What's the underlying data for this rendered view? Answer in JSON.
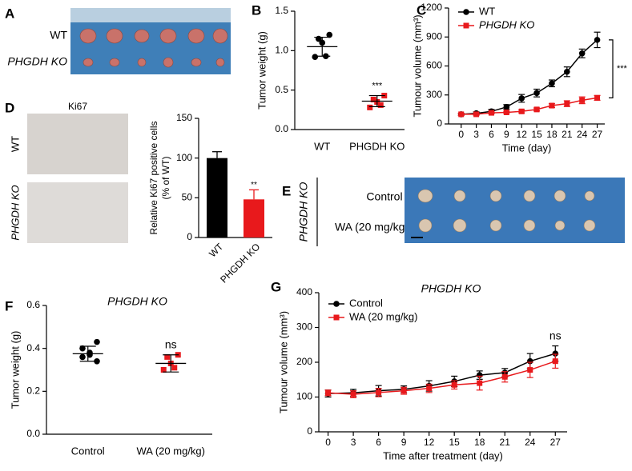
{
  "panel_labels": [
    "A",
    "B",
    "C",
    "D",
    "E",
    "F",
    "G"
  ],
  "images": {
    "A": {
      "rows": [
        "WT",
        "PHGDH KO"
      ]
    },
    "D": {
      "title": "Ki67",
      "rows": [
        "WT",
        "PHGDH KO"
      ]
    },
    "E": {
      "group": "PHGDH KO",
      "rows": [
        "Control",
        "WA (20 mg/kg)"
      ]
    }
  },
  "chart_data": [
    {
      "type": "dot",
      "ylabel": "Tumor weight (g)",
      "categories": [
        "WT",
        "PHGDH KO"
      ],
      "colors": [
        "#000000",
        "#e8191c"
      ],
      "values": [
        [
          1.2,
          1.15,
          1.1,
          0.93,
          0.92
        ],
        [
          0.43,
          0.38,
          0.35,
          0.31,
          0.28
        ]
      ],
      "means": [
        1.05,
        0.36
      ],
      "sds": [
        0.12,
        0.07
      ],
      "annotation": "***",
      "ylim": [
        0,
        1.5
      ],
      "yticks": [
        {
          "value": 0,
          "label": "0.0"
        },
        0.5,
        {
          "value": 1,
          "label": "1.0"
        },
        1.5
      ]
    },
    {
      "type": "line",
      "ylabel": "Tumour volume (mm³)",
      "xlabel": "Time (day)",
      "x": [
        0,
        3,
        6,
        9,
        12,
        15,
        18,
        21,
        24,
        27
      ],
      "series": [
        {
          "name": "WT",
          "color": "#000000",
          "marker": "circle",
          "values": [
            100,
            110,
            130,
            175,
            265,
            320,
            420,
            540,
            730,
            870
          ],
          "errors": [
            10,
            15,
            20,
            25,
            40,
            40,
            35,
            50,
            45,
            80
          ]
        },
        {
          "name": "PHGDH KO",
          "color": "#e8191c",
          "marker": "square",
          "values": [
            100,
            100,
            115,
            120,
            130,
            150,
            190,
            210,
            245,
            270
          ],
          "errors": [
            10,
            10,
            10,
            10,
            15,
            15,
            20,
            30,
            35,
            25
          ]
        }
      ],
      "annotation": "***",
      "legend": "top-left",
      "xlim": [
        -2.5,
        28.5
      ],
      "xticks": [
        0,
        3,
        6,
        9,
        12,
        15,
        18,
        21,
        24,
        27
      ],
      "ylim": [
        0,
        1200
      ],
      "yticks": [
        0,
        300,
        600,
        900,
        1200
      ]
    },
    {
      "type": "bar",
      "ylabel": [
        "Relative Ki67 positive cells",
        "(% of WT)"
      ],
      "categories": [
        "WT",
        "PHGDH KO"
      ],
      "colors": [
        "#000000",
        "#e8191c"
      ],
      "values": [
        100,
        48
      ],
      "errors": [
        8,
        12
      ],
      "annotation": "**",
      "ylim": [
        0,
        150
      ],
      "yticks": [
        0,
        50,
        100,
        150
      ]
    },
    {
      "type": "dot",
      "title": "PHGDH KO",
      "ylabel": "Tumor weight (g)",
      "categories": [
        "Control",
        "WA (20 mg/kg)"
      ],
      "colors": [
        "#000000",
        "#e8191c"
      ],
      "values": [
        [
          0.43,
          0.4,
          0.38,
          0.37,
          0.36,
          0.34
        ],
        [
          0.37,
          0.36,
          0.33,
          0.31,
          0.3
        ]
      ],
      "means": [
        0.375,
        0.33
      ],
      "sds": [
        0.035,
        0.04
      ],
      "annotation": "ns",
      "ylim": [
        0,
        0.6
      ],
      "yticks": [
        {
          "value": 0,
          "label": "0.0"
        },
        0.2,
        0.4,
        0.6
      ]
    },
    {
      "type": "line",
      "title": "PHGDH KO",
      "ylabel": "Tumour volume (mm³)",
      "xlabel": "Time after treatment (day)",
      "x": [
        0,
        3,
        6,
        9,
        12,
        15,
        18,
        21,
        24,
        27
      ],
      "series": [
        {
          "name": "Control",
          "color": "#000000",
          "marker": "circle",
          "values": [
            110,
            112,
            118,
            122,
            132,
            145,
            163,
            170,
            203,
            225
          ],
          "errors": [
            10,
            10,
            15,
            10,
            15,
            15,
            12,
            12,
            22,
            22
          ]
        },
        {
          "name": "WA (20 mg/kg)",
          "color": "#e8191c",
          "marker": "square",
          "values": [
            112,
            108,
            113,
            118,
            125,
            135,
            140,
            158,
            178,
            203
          ],
          "errors": [
            8,
            10,
            12,
            10,
            12,
            12,
            20,
            15,
            22,
            20
          ]
        }
      ],
      "annotation": "ns",
      "legend": "top-left",
      "xlim": [
        -1.1,
        28.4
      ],
      "xticks": [
        0,
        3,
        6,
        9,
        12,
        15,
        18,
        21,
        24,
        27
      ],
      "ylim": [
        0,
        400
      ],
      "yticks": [
        0,
        100,
        200,
        300,
        400
      ]
    }
  ]
}
